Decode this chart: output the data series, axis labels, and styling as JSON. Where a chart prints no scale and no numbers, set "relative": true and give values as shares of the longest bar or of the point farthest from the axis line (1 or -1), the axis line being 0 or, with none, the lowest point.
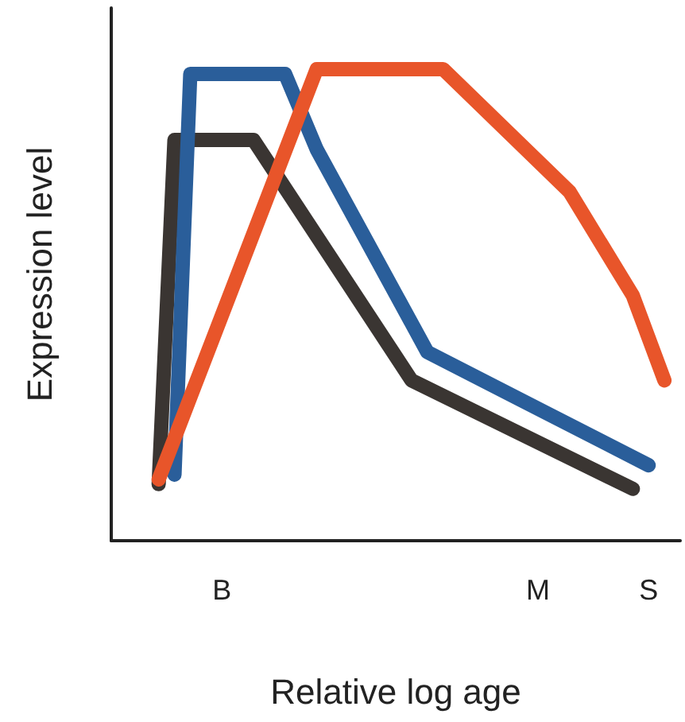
{
  "chart_data": {
    "type": "line",
    "relative": true,
    "xlabel": "Relative log age",
    "ylabel": "Expression level",
    "marker": "none",
    "line_style": "solid",
    "grid": false,
    "categories": [
      null,
      null,
      null,
      null,
      null,
      null,
      null,
      "B",
      null,
      null,
      null,
      null,
      null,
      null,
      null,
      null,
      null,
      null,
      null,
      null,
      null,
      null,
      null,
      null,
      null,
      null,
      null,
      "M",
      null,
      null,
      null,
      null,
      null,
      null,
      "S",
      null,
      null
    ],
    "series": [
      {
        "color": "#3a3532",
        "values": [
          null,
          null,
          null,
          0.12,
          0.85,
          null,
          null,
          null,
          null,
          0.85,
          null,
          null,
          null,
          null,
          null,
          null,
          null,
          null,
          null,
          0.34,
          null,
          null,
          null,
          null,
          null,
          null,
          null,
          null,
          null,
          null,
          null,
          null,
          null,
          0.11,
          null,
          null,
          null
        ]
      },
      {
        "color": "#2a5e9a",
        "values": [
          null,
          null,
          null,
          null,
          0.14,
          0.99,
          null,
          null,
          null,
          null,
          null,
          0.99,
          null,
          0.83,
          null,
          null,
          null,
          null,
          null,
          null,
          0.4,
          null,
          null,
          null,
          null,
          null,
          null,
          null,
          null,
          null,
          null,
          null,
          null,
          null,
          0.16,
          null,
          null
        ]
      },
      {
        "color": "#e8552a",
        "values": [
          null,
          null,
          null,
          0.13,
          null,
          null,
          null,
          null,
          null,
          null,
          null,
          null,
          null,
          1.0,
          null,
          null,
          null,
          null,
          null,
          null,
          null,
          1.0,
          null,
          null,
          null,
          null,
          null,
          null,
          null,
          0.74,
          null,
          null,
          null,
          0.52,
          null,
          0.34,
          null
        ]
      }
    ]
  }
}
